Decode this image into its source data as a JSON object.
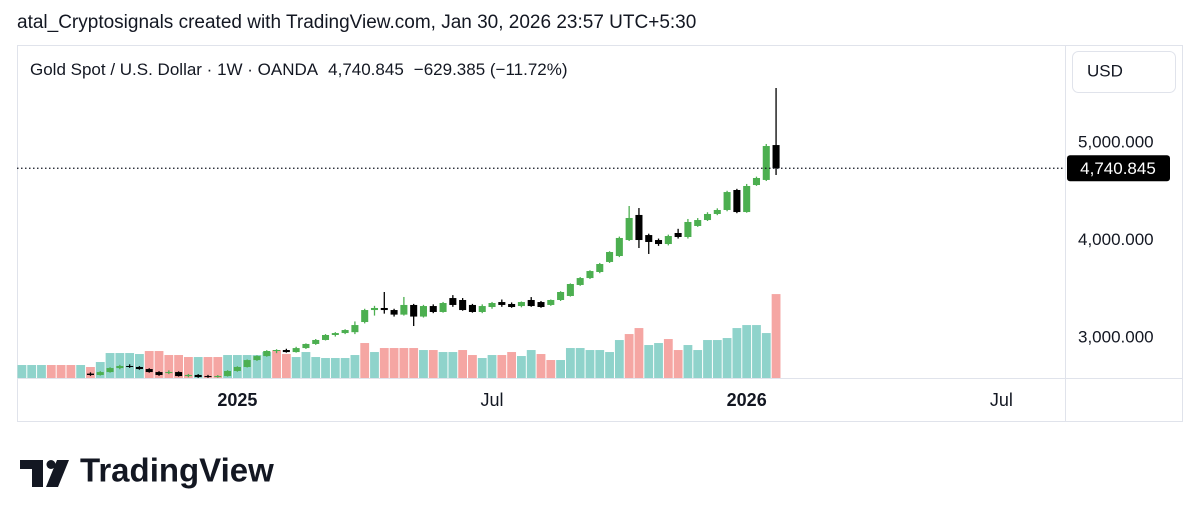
{
  "header": {
    "caption": "atal_Cryptosignals created with TradingView.com, Jan 30, 2026 23:57 UTC+5:30"
  },
  "footer": {
    "brand": "TradingView"
  },
  "chart_data": {
    "type": "candlestick",
    "symbol": "Gold Spot / U.S. Dollar · 1W · OANDA",
    "change": "−629.385 (−11.72%)",
    "currency": "USD",
    "last_price": {
      "value": 4740.845,
      "label": "4,740.845"
    },
    "up_color": "#4caf50",
    "down_color": "#000000",
    "ylim": [
      2590,
      6005
    ],
    "yticks": [
      {
        "value": 3000,
        "label": "3,000.000"
      },
      {
        "value": 4000,
        "label": "4,000.000"
      },
      {
        "value": 5000,
        "label": "5,000.000"
      }
    ],
    "grid": false,
    "categories": [
      null,
      null,
      null,
      null,
      null,
      null,
      null,
      null,
      null,
      null,
      null,
      null,
      null,
      null,
      null,
      null,
      null,
      null,
      null,
      null,
      null,
      null,
      "2025",
      null,
      null,
      null,
      null,
      null,
      null,
      null,
      null,
      null,
      null,
      null,
      null,
      null,
      null,
      null,
      null,
      null,
      null,
      null,
      null,
      null,
      null,
      null,
      null,
      null,
      "Jul",
      null,
      null,
      null,
      null,
      null,
      null,
      null,
      null,
      null,
      null,
      null,
      null,
      null,
      null,
      null,
      null,
      null,
      null,
      null,
      null,
      null,
      null,
      null,
      null,
      null,
      "2026",
      null,
      null,
      null,
      null,
      null,
      null,
      null,
      null,
      null,
      null,
      null,
      null,
      null,
      null,
      null,
      null,
      null,
      null,
      null,
      null,
      null,
      null,
      null,
      null,
      null,
      "Jul",
      null,
      null,
      null,
      null,
      null,
      null
    ],
    "ohlc": [
      null,
      null,
      null,
      null,
      null,
      null,
      null,
      [
        2635,
        2648,
        2612,
        2621
      ],
      [
        2621,
        2660,
        2615,
        2651
      ],
      [
        2651,
        2700,
        2645,
        2692
      ],
      [
        2692,
        2725,
        2680,
        2713
      ],
      [
        2713,
        2730,
        2695,
        2703
      ],
      [
        2703,
        2712,
        2675,
        2682
      ],
      [
        2682,
        2690,
        2645,
        2651
      ],
      [
        2651,
        2660,
        2612,
        2621
      ],
      [
        2641,
        2668,
        2630,
        2651
      ],
      [
        2651,
        2658,
        2605,
        2610
      ],
      [
        2610,
        2632,
        2598,
        2621
      ],
      [
        2621,
        2630,
        2592,
        2600
      ],
      [
        2610,
        2622,
        2592,
        2600
      ],
      [
        2600,
        2620,
        2593,
        2610
      ],
      [
        2610,
        2670,
        2605,
        2662
      ],
      [
        2662,
        2710,
        2655,
        2703
      ],
      [
        2703,
        2780,
        2698,
        2774
      ],
      [
        2774,
        2822,
        2765,
        2815
      ],
      [
        2815,
        2875,
        2808,
        2867
      ],
      [
        2867,
        2885,
        2845,
        2877
      ],
      [
        2877,
        2890,
        2850,
        2856
      ],
      [
        2856,
        2910,
        2850,
        2897
      ],
      [
        2897,
        2945,
        2888,
        2939
      ],
      [
        2939,
        2990,
        2930,
        2980
      ],
      [
        2980,
        3040,
        2975,
        3031
      ],
      [
        3031,
        3060,
        3015,
        3051
      ],
      [
        3051,
        3090,
        3040,
        3082
      ],
      [
        3060,
        3170,
        3040,
        3133
      ],
      [
        3164,
        3300,
        3150,
        3287
      ],
      [
        3287,
        3330,
        3230,
        3308
      ],
      [
        3308,
        3472,
        3250,
        3287
      ],
      [
        3287,
        3300,
        3220,
        3240
      ],
      [
        3240,
        3421,
        3230,
        3339
      ],
      [
        3339,
        3350,
        3123,
        3220
      ],
      [
        3220,
        3340,
        3210,
        3328
      ],
      [
        3328,
        3345,
        3255,
        3267
      ],
      [
        3267,
        3370,
        3260,
        3359
      ],
      [
        3410,
        3440,
        3320,
        3339
      ],
      [
        3390,
        3410,
        3280,
        3287
      ],
      [
        3339,
        3350,
        3260,
        3267
      ],
      [
        3267,
        3345,
        3255,
        3328
      ],
      [
        3318,
        3370,
        3300,
        3359
      ],
      [
        3369,
        3395,
        3320,
        3339
      ],
      [
        3349,
        3365,
        3310,
        3318
      ],
      [
        3328,
        3375,
        3315,
        3369
      ],
      [
        3390,
        3420,
        3320,
        3328
      ],
      [
        3369,
        3380,
        3310,
        3318
      ],
      [
        3339,
        3395,
        3330,
        3390
      ],
      [
        3390,
        3480,
        3380,
        3472
      ],
      [
        3431,
        3560,
        3425,
        3554
      ],
      [
        3544,
        3625,
        3535,
        3615
      ],
      [
        3615,
        3695,
        3605,
        3687
      ],
      [
        3677,
        3770,
        3665,
        3759
      ],
      [
        3780,
        3890,
        3770,
        3882
      ],
      [
        3841,
        4040,
        3830,
        4026
      ],
      [
        4005,
        4354,
        3995,
        4231
      ],
      [
        4262,
        4333,
        3923,
        4005
      ],
      [
        4056,
        4070,
        3862,
        3985
      ],
      [
        4005,
        4020,
        3945,
        3964
      ],
      [
        3964,
        4060,
        3950,
        4046
      ],
      [
        4077,
        4120,
        4020,
        4036
      ],
      [
        4036,
        4221,
        4020,
        4190
      ],
      [
        4149,
        4230,
        4140,
        4210
      ],
      [
        4210,
        4290,
        4200,
        4272
      ],
      [
        4272,
        4330,
        4260,
        4313
      ],
      [
        4313,
        4510,
        4300,
        4497
      ],
      [
        4518,
        4530,
        4280,
        4292
      ],
      [
        4292,
        4580,
        4285,
        4559
      ],
      [
        4569,
        4655,
        4560,
        4641
      ],
      [
        4621,
        4990,
        4610,
        4969
      ],
      [
        4979,
        5564,
        4672,
        4740.845
      ],
      null,
      null,
      null,
      null,
      null,
      null,
      null,
      null,
      null,
      null,
      null,
      null,
      null,
      null,
      null,
      null,
      null,
      null,
      null,
      null,
      null,
      null,
      null,
      null,
      null,
      null,
      null,
      null,
      null
    ],
    "volume": {
      "axis": "y2",
      "y2lim": [
        0,
        100
      ],
      "values": [
        3.9,
        3.9,
        3.9,
        3.9,
        3.9,
        3.9,
        3.9,
        3.3,
        4.8,
        7.5,
        7.5,
        7.5,
        7.2,
        8.1,
        8.1,
        6.9,
        6.9,
        6.3,
        6.3,
        6.3,
        6.3,
        6.9,
        6.9,
        6.9,
        6.9,
        7.8,
        8.4,
        7.2,
        6.3,
        7.8,
        6.3,
        6.0,
        6.0,
        6.0,
        6.9,
        10.5,
        7.8,
        9.0,
        9.0,
        9.0,
        9.0,
        8.4,
        8.4,
        7.8,
        7.8,
        8.4,
        6.9,
        6.0,
        6.9,
        6.9,
        7.8,
        6.6,
        8.4,
        7.2,
        5.4,
        5.4,
        9.0,
        9.0,
        8.4,
        8.4,
        7.8,
        11.4,
        13.2,
        15.0,
        9.9,
        10.5,
        11.7,
        8.4,
        9.9,
        8.4,
        11.4,
        11.4,
        12.0,
        15.0,
        15.9,
        15.9,
        13.5,
        25.2,
        null,
        null,
        null,
        null,
        null,
        null,
        null,
        null,
        null,
        null,
        null,
        null,
        null,
        null,
        null,
        null,
        null,
        null,
        null,
        null,
        null,
        null,
        null,
        null,
        null,
        null,
        null,
        null,
        null
      ],
      "colors": [
        "#8fd3cb",
        "#8fd3cb",
        "#8fd3cb",
        "#f5a6a3",
        "#f5a6a3",
        "#f5a6a3",
        "#8fd3cb",
        "#f5a6a3",
        "#8fd3cb",
        "#8fd3cb",
        "#8fd3cb",
        "#8fd3cb",
        "#8fd3cb",
        "#f5a6a3",
        "#f5a6a3",
        "#f5a6a3",
        "#f5a6a3",
        "#f5a6a3",
        "#8fd3cb",
        "#f5a6a3",
        "#f5a6a3",
        "#8fd3cb",
        "#8fd3cb",
        "#8fd3cb",
        "#8fd3cb",
        "#8fd3cb",
        "#f5a6a3",
        "#f5a6a3",
        "#8fd3cb",
        "#8fd3cb",
        "#8fd3cb",
        "#8fd3cb",
        "#8fd3cb",
        "#8fd3cb",
        "#8fd3cb",
        "#f5a6a3",
        "#8fd3cb",
        "#f5a6a3",
        "#f5a6a3",
        "#f5a6a3",
        "#f5a6a3",
        "#8fd3cb",
        "#f5a6a3",
        "#8fd3cb",
        "#8fd3cb",
        "#f5a6a3",
        "#f5a6a3",
        "#8fd3cb",
        "#8fd3cb",
        "#f5a6a3",
        "#f5a6a3",
        "#8fd3cb",
        "#8fd3cb",
        "#f5a6a3",
        "#f5a6a3",
        "#8fd3cb",
        "#8fd3cb",
        "#8fd3cb",
        "#8fd3cb",
        "#8fd3cb",
        "#8fd3cb",
        "#8fd3cb",
        "#f5a6a3",
        "#f5a6a3",
        "#8fd3cb",
        "#8fd3cb",
        "#f5a6a3",
        "#f5a6a3",
        "#8fd3cb",
        "#8fd3cb",
        "#8fd3cb",
        "#8fd3cb",
        "#8fd3cb",
        "#8fd3cb",
        "#8fd3cb",
        "#8fd3cb",
        "#8fd3cb",
        "#f5a6a3",
        null,
        null,
        null,
        null,
        null,
        null,
        null,
        null,
        null,
        null,
        null,
        null,
        null,
        null,
        null,
        null,
        null,
        null,
        null,
        null,
        null,
        null,
        null,
        null,
        null,
        null,
        null,
        null,
        null
      ]
    }
  }
}
